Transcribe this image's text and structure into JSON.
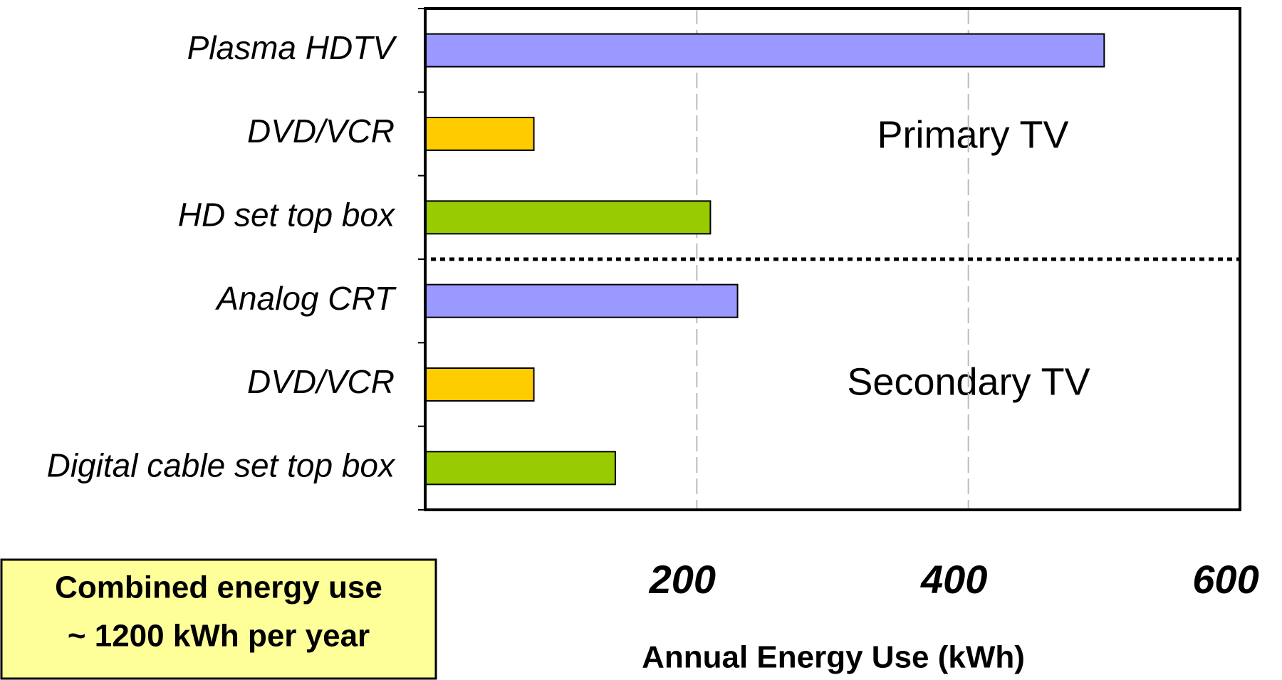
{
  "chart_data": {
    "type": "bar",
    "orientation": "horizontal",
    "categories": [
      "Plasma HDTV",
      "DVD/VCR",
      "HD set top box",
      "Analog CRT",
      "DVD/VCR",
      "Digital cable set top box"
    ],
    "values": [
      500,
      80,
      210,
      230,
      80,
      140
    ],
    "colors": [
      "#9999ff",
      "#ffcc00",
      "#99cc00",
      "#9999ff",
      "#ffcc00",
      "#99cc00"
    ],
    "xlabel": "Annual Energy Use (kWh)",
    "xlim": [
      0,
      600
    ],
    "xticks": [
      200,
      400,
      600
    ],
    "grid": true,
    "annotations": [
      "Primary TV",
      "Secondary TV"
    ],
    "note": [
      "Combined energy use",
      "~ 1200 kWh per year"
    ]
  }
}
